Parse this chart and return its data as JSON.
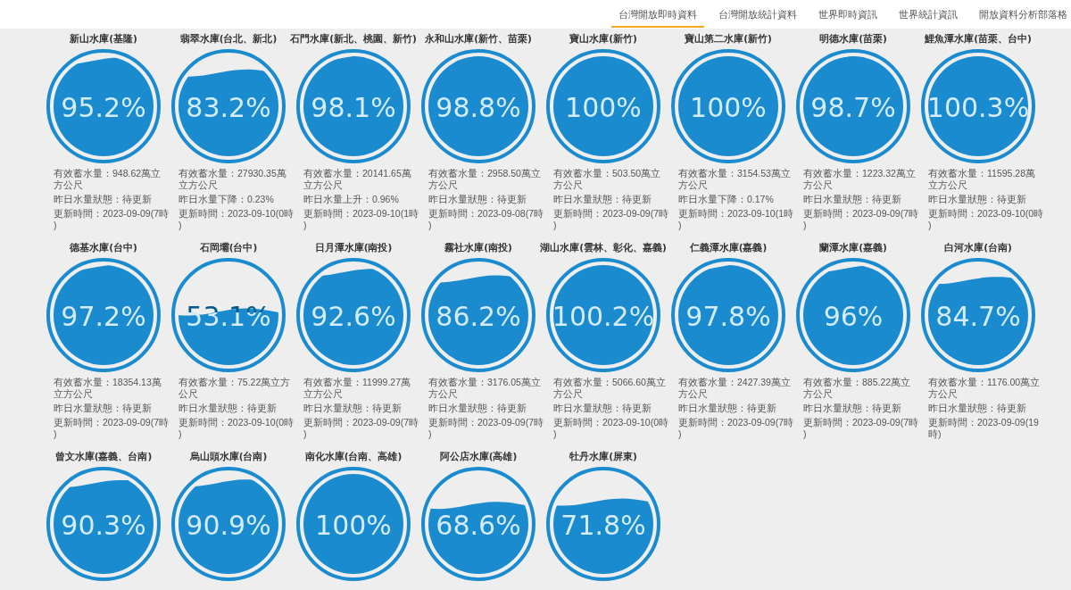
{
  "chart_data": [
    {
      "type": "other",
      "annotations": [
        "台灣開放即時資料",
        "台灣開放統計資料",
        "世界即時資訊",
        "世界統計資訊",
        "開放資料分析部落格"
      ]
    },
    {
      "type": "other",
      "title": "新山水庫(基隆)",
      "values": [
        95.2
      ],
      "value_labels": [
        "95.2%"
      ],
      "annotations": [
        "有效蓄水量：948.62萬立方公尺",
        "昨日水量狀態：待更新",
        "更新時間：2023-09-09(7時)"
      ]
    },
    {
      "type": "other",
      "title": "翡翠水庫(台北、新北)",
      "values": [
        83.2
      ],
      "value_labels": [
        "83.2%"
      ],
      "annotations": [
        "有效蓄水量：27930.35萬立方公尺",
        "昨日水量下降：0.23%",
        "更新時間：2023-09-10(0時)"
      ]
    },
    {
      "type": "other",
      "title": "石門水庫(新北、桃園、新竹)",
      "values": [
        98.1
      ],
      "value_labels": [
        "98.1%"
      ],
      "annotations": [
        "有效蓄水量：20141.65萬立方公尺",
        "昨日水量上升：0.96%",
        "更新時間：2023-09-10(1時)"
      ]
    },
    {
      "type": "other",
      "title": "永和山水庫(新竹、苗栗)",
      "values": [
        98.8
      ],
      "value_labels": [
        "98.8%"
      ],
      "annotations": [
        "有效蓄水量：2958.50萬立方公尺",
        "昨日水量狀態：待更新",
        "更新時間：2023-09-08(7時)"
      ]
    },
    {
      "type": "other",
      "title": "寶山水庫(新竹)",
      "values": [
        100
      ],
      "value_labels": [
        "100%"
      ],
      "annotations": [
        "有效蓄水量：503.50萬立方公尺",
        "昨日水量狀態：待更新",
        "更新時間：2023-09-09(7時)"
      ]
    },
    {
      "type": "other",
      "title": "寶山第二水庫(新竹)",
      "values": [
        100
      ],
      "value_labels": [
        "100%"
      ],
      "annotations": [
        "有效蓄水量：3154.53萬立方公尺",
        "昨日水量下降：0.17%",
        "更新時間：2023-09-10(1時)"
      ]
    },
    {
      "type": "other",
      "title": "明德水庫(苗栗)",
      "values": [
        98.7
      ],
      "value_labels": [
        "98.7%"
      ],
      "annotations": [
        "有效蓄水量：1223.32萬立方公尺",
        "昨日水量狀態：待更新",
        "更新時間：2023-09-09(7時)"
      ]
    },
    {
      "type": "other",
      "title": "鯉魚潭水庫(苗栗、台中)",
      "values": [
        100.3
      ],
      "value_labels": [
        "100.3%"
      ],
      "annotations": [
        "有效蓄水量：11595.28萬立方公尺",
        "昨日水量狀態：待更新",
        "更新時間：2023-09-10(0時)"
      ]
    },
    {
      "type": "other",
      "title": "德基水庫(台中)",
      "values": [
        97.2
      ],
      "value_labels": [
        "97.2%"
      ],
      "annotations": [
        "有效蓄水量：18354.13萬立方公尺",
        "昨日水量狀態：待更新",
        "更新時間：2023-09-09(7時)"
      ]
    },
    {
      "type": "other",
      "title": "石岡壩(台中)",
      "values": [
        53.1
      ],
      "value_labels": [
        "53.1%"
      ],
      "annotations": [
        "有效蓄水量：75.22萬立方公尺",
        "昨日水量狀態：待更新",
        "更新時間：2023-09-10(0時)"
      ]
    },
    {
      "type": "other",
      "title": "日月潭水庫(南投)",
      "values": [
        92.6
      ],
      "value_labels": [
        "92.6%"
      ],
      "annotations": [
        "有效蓄水量：11999.27萬立方公尺",
        "昨日水量狀態：待更新",
        "更新時間：2023-09-09(7時)"
      ]
    },
    {
      "type": "other",
      "title": "霧社水庫(南投)",
      "values": [
        86.2
      ],
      "value_labels": [
        "86.2%"
      ],
      "annotations": [
        "有效蓄水量：3176.05萬立方公尺",
        "昨日水量狀態：待更新",
        "更新時間：2023-09-09(7時)"
      ]
    },
    {
      "type": "other",
      "title": "湖山水庫(雲林、彰化、嘉義)",
      "values": [
        100.2
      ],
      "value_labels": [
        "100.2%"
      ],
      "annotations": [
        "有效蓄水量：5066.60萬立方公尺",
        "昨日水量狀態：待更新",
        "更新時間：2023-09-10(0時)"
      ]
    },
    {
      "type": "other",
      "title": "仁義潭水庫(嘉義)",
      "values": [
        97.8
      ],
      "value_labels": [
        "97.8%"
      ],
      "annotations": [
        "有效蓄水量：2427.39萬立方公尺",
        "昨日水量狀態：待更新",
        "更新時間：2023-09-09(7時)"
      ]
    },
    {
      "type": "other",
      "title": "蘭潭水庫(嘉義)",
      "values": [
        96
      ],
      "value_labels": [
        "96%"
      ],
      "annotations": [
        "有效蓄水量：885.22萬立方公尺",
        "昨日水量狀態：待更新",
        "更新時間：2023-09-09(7時)"
      ]
    },
    {
      "type": "other",
      "title": "白河水庫(台南)",
      "values": [
        84.7
      ],
      "value_labels": [
        "84.7%"
      ],
      "annotations": [
        "有效蓄水量：1176.00萬立方公尺",
        "昨日水量狀態：待更新",
        "更新時間：2023-09-09(19時)"
      ]
    },
    {
      "type": "other",
      "title": "曾文水庫(嘉義、台南)",
      "values": [
        90.3
      ],
      "value_labels": [
        "90.3%"
      ]
    },
    {
      "type": "other",
      "title": "烏山頭水庫(台南)",
      "values": [
        90.9
      ],
      "value_labels": [
        "90.9%"
      ]
    },
    {
      "type": "other",
      "title": "南化水庫(台南、高雄)",
      "values": [
        100
      ],
      "value_labels": [
        "100%"
      ]
    },
    {
      "type": "other",
      "title": "阿公店水庫(高雄)",
      "values": [
        68.6
      ],
      "value_labels": [
        "68.6%"
      ]
    },
    {
      "type": "other",
      "title": "牡丹水庫(屏東)",
      "values": [
        71.8
      ],
      "value_labels": [
        "71.8%"
      ]
    }
  ]
}
